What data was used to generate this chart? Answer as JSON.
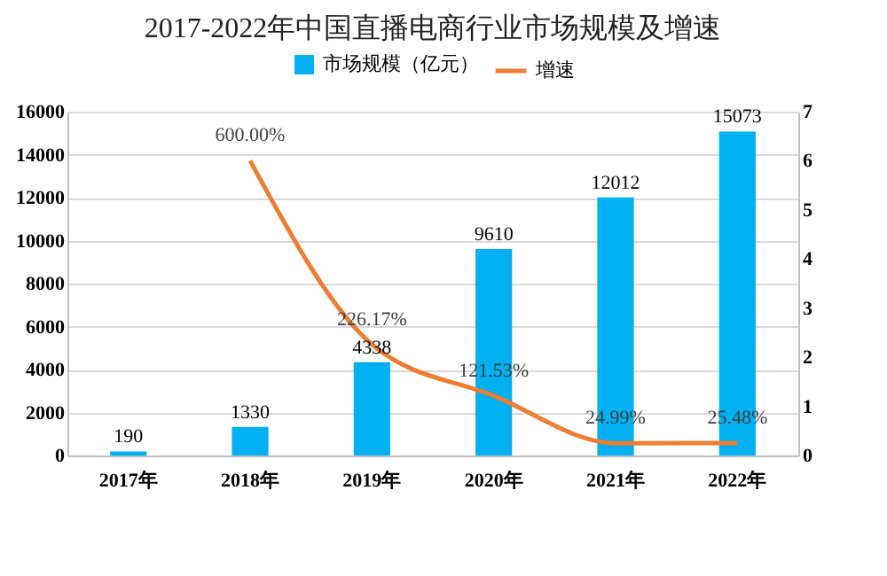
{
  "chart_data": {
    "type": "bar",
    "title": "2017-2022年中国直播电商行业市场规模及增速",
    "categories": [
      "2017年",
      "2018年",
      "2019年",
      "2020年",
      "2021年",
      "2022年"
    ],
    "series": [
      {
        "name": "市场规模（亿元）",
        "color": "#00b0f0",
        "values": [
          190,
          1330,
          4338,
          9610,
          12012,
          15073
        ],
        "value_labels": [
          "190",
          "1330",
          "4338",
          "9610",
          "12012",
          "15073"
        ]
      },
      {
        "name": "增速",
        "type": "line",
        "axis": "y2",
        "color": "#ed7d31",
        "values": [
          null,
          6.0,
          2.2617,
          1.2153,
          0.2499,
          0.2548
        ],
        "value_labels": [
          null,
          "600.00%",
          "226.17%",
          "121.53%",
          "24.99%",
          "25.48%"
        ]
      }
    ],
    "ylim": [
      0,
      16000
    ],
    "yticks": [
      0,
      2000,
      4000,
      6000,
      8000,
      10000,
      12000,
      14000,
      16000
    ],
    "y2lim": [
      0,
      7
    ],
    "y2ticks": [
      0,
      1,
      2,
      3,
      4,
      5,
      6,
      7
    ],
    "grid": "y",
    "legend": "top",
    "marker": "none",
    "line_style": "solid"
  }
}
